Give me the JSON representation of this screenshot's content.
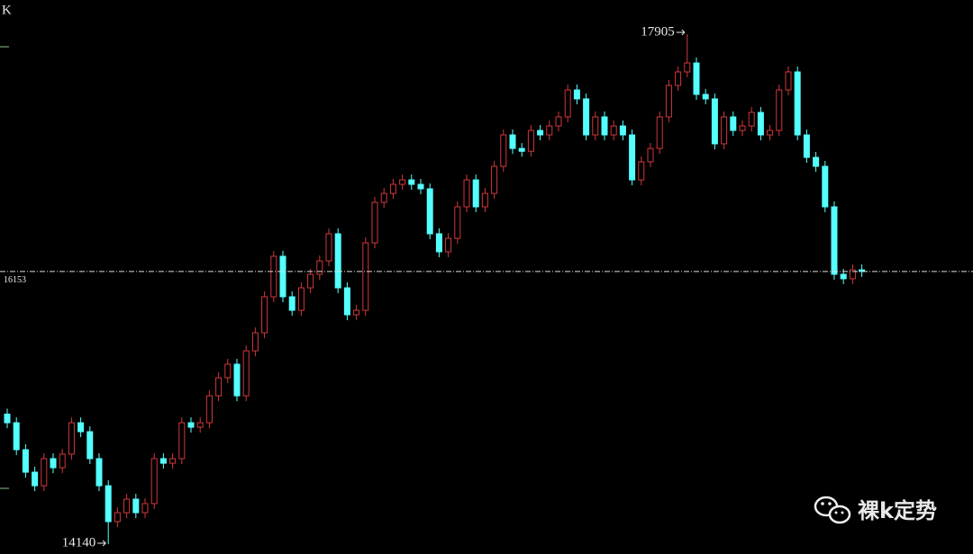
{
  "chart_data": {
    "type": "candlestick",
    "title": "K",
    "watermark": "裸k定势",
    "up_color": "#d0383a",
    "down_color": "#54ffff",
    "ylim": [
      14067,
      18157
    ],
    "open": [
      15100,
      15036,
      14837,
      14671,
      14571,
      14771,
      14704,
      14804,
      15036,
      14970,
      14771,
      14571,
      14306,
      14372,
      14472,
      14372,
      14439,
      14771,
      14737,
      14771,
      15036,
      15003,
      15036,
      15235,
      15368,
      15468,
      15235,
      15567,
      15700,
      15966,
      16265,
      15966,
      15866,
      16032,
      16132,
      16231,
      16431,
      16032,
      15833,
      15866,
      16364,
      16663,
      16729,
      16796,
      16829,
      16796,
      16763,
      16431,
      16298,
      16397,
      16630,
      16829,
      16630,
      16729,
      16929,
      17161,
      17061,
      17040,
      17194,
      17161,
      17227,
      17294,
      17493,
      17427,
      17161,
      17294,
      17161,
      17227,
      17161,
      16829,
      16962,
      17061,
      17294,
      17526,
      17626,
      17692,
      17460,
      17427,
      17095,
      17294,
      17194,
      17227,
      17327,
      17161,
      17194,
      17493,
      17626,
      17161,
      16995,
      16929,
      16630,
      16132,
      16099,
      16165
    ],
    "high": [
      15140,
      15076,
      14877,
      14711,
      14811,
      14811,
      14844,
      15076,
      15076,
      15010,
      14811,
      14611,
      14412,
      14512,
      14512,
      14479,
      14811,
      14811,
      14811,
      15076,
      15076,
      15076,
      15275,
      15408,
      15508,
      15508,
      15607,
      15740,
      16006,
      16305,
      16305,
      16006,
      16072,
      16172,
      16271,
      16471,
      16471,
      16072,
      15906,
      16404,
      16703,
      16769,
      16836,
      16869,
      16869,
      16836,
      16803,
      16471,
      16437,
      16670,
      16869,
      16869,
      16769,
      16969,
      17201,
      17201,
      17101,
      17234,
      17234,
      17267,
      17334,
      17533,
      17533,
      17467,
      17334,
      17334,
      17267,
      17267,
      17201,
      17002,
      17101,
      17334,
      17566,
      17666,
      17905,
      17732,
      17500,
      17467,
      17334,
      17334,
      17267,
      17367,
      17367,
      17234,
      17533,
      17666,
      17666,
      17201,
      17035,
      16969,
      16670,
      16172,
      16205,
      16205
    ],
    "low": [
      14996,
      14797,
      14631,
      14531,
      14531,
      14664,
      14664,
      14764,
      14930,
      14731,
      14531,
      14140,
      14266,
      14332,
      14332,
      14332,
      14399,
      14697,
      14697,
      14731,
      14963,
      14963,
      14996,
      15195,
      15328,
      15195,
      15195,
      15527,
      15660,
      15926,
      15926,
      15826,
      15826,
      15992,
      16092,
      16191,
      15992,
      15793,
      15793,
      15826,
      16324,
      16623,
      16689,
      16756,
      16756,
      16723,
      16391,
      16258,
      16258,
      16357,
      16590,
      16590,
      16590,
      16689,
      16889,
      17021,
      17000,
      17000,
      17121,
      17121,
      17187,
      17254,
      17387,
      17121,
      17121,
      17121,
      17121,
      17121,
      16789,
      16789,
      16922,
      17021,
      17254,
      17486,
      17586,
      17420,
      17387,
      17055,
      17055,
      17154,
      17154,
      17187,
      17121,
      17121,
      17154,
      17453,
      17121,
      16955,
      16889,
      16590,
      16092,
      16059,
      16059,
      16113
    ],
    "close": [
      15036,
      14837,
      14671,
      14571,
      14771,
      14704,
      14804,
      15036,
      14970,
      14771,
      14571,
      14306,
      14372,
      14472,
      14372,
      14439,
      14771,
      14737,
      14771,
      15036,
      15003,
      15036,
      15235,
      15368,
      15468,
      15235,
      15567,
      15700,
      15966,
      16265,
      15966,
      15866,
      16032,
      16132,
      16231,
      16431,
      16032,
      15833,
      15866,
      16364,
      16663,
      16729,
      16796,
      16829,
      16796,
      16763,
      16431,
      16298,
      16397,
      16630,
      16829,
      16630,
      16729,
      16929,
      17161,
      17061,
      17040,
      17194,
      17161,
      17227,
      17294,
      17493,
      17427,
      17161,
      17294,
      17161,
      17227,
      17161,
      16829,
      16962,
      17061,
      17294,
      17526,
      17626,
      17692,
      17460,
      17427,
      17095,
      17294,
      17194,
      17227,
      17327,
      17161,
      17194,
      17493,
      17626,
      17161,
      16995,
      16929,
      16630,
      16132,
      16099,
      16165,
      16153
    ]
  }
}
